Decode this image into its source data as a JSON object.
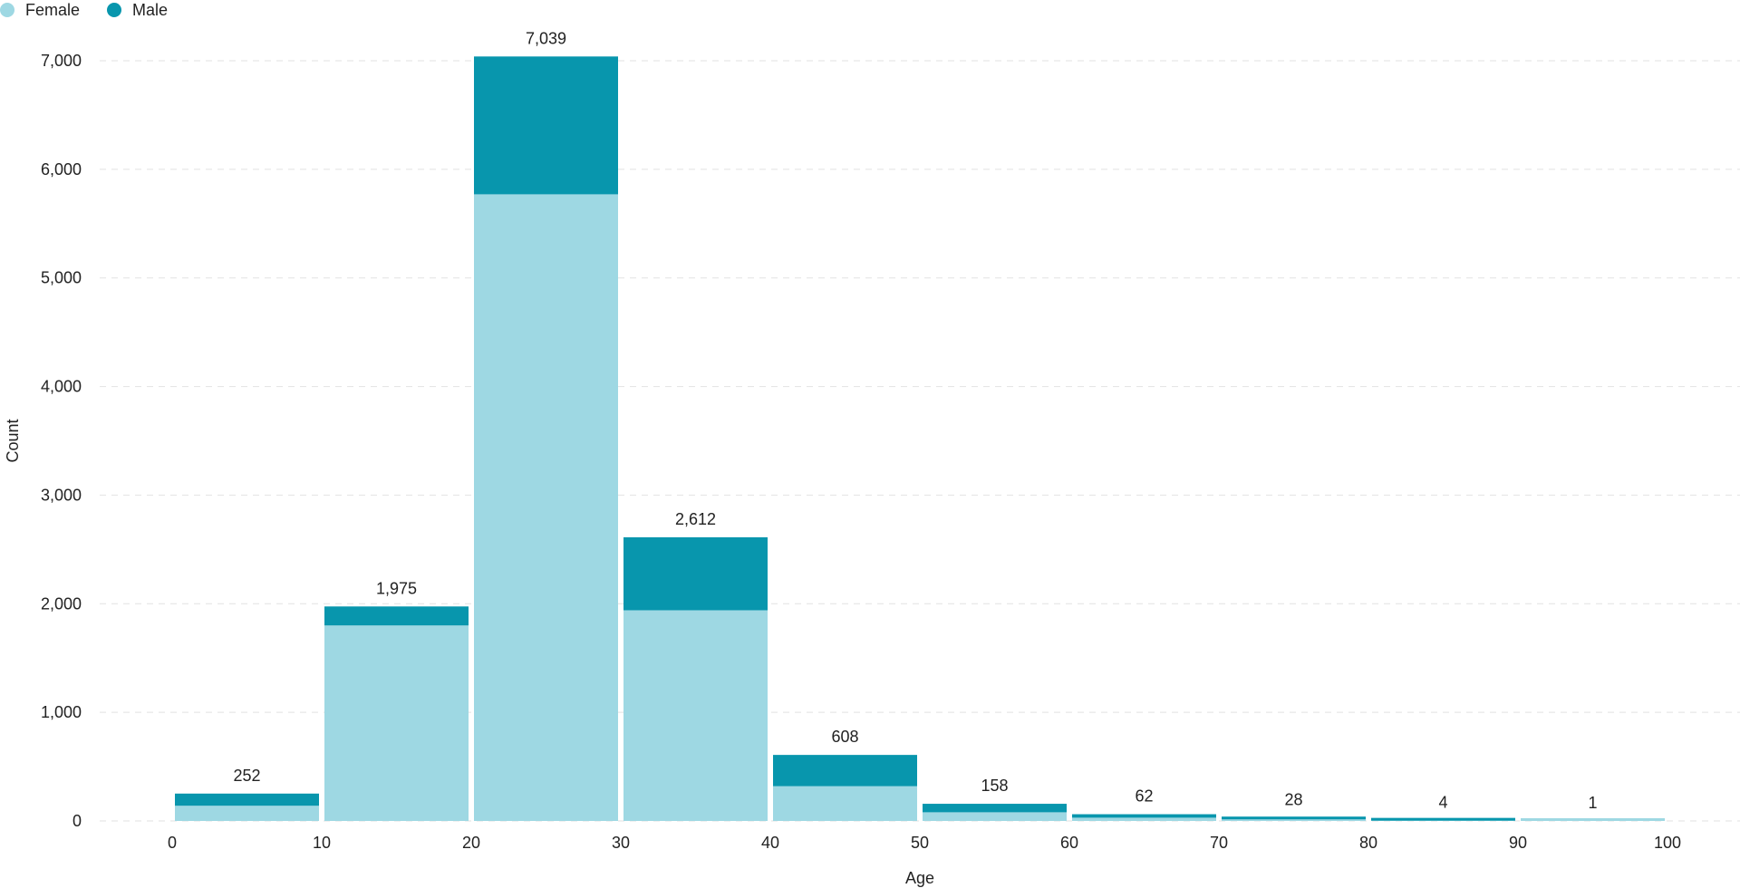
{
  "legend": {
    "female_label": "Female",
    "male_label": "Male"
  },
  "chart_data": {
    "type": "bar",
    "stacked": true,
    "title": "",
    "xlabel": "Age",
    "ylabel": "Count",
    "bins": [
      {
        "from": 0,
        "to": 10
      },
      {
        "from": 10,
        "to": 20
      },
      {
        "from": 20,
        "to": 30
      },
      {
        "from": 30,
        "to": 40
      },
      {
        "from": 40,
        "to": 50
      },
      {
        "from": 50,
        "to": 60
      },
      {
        "from": 60,
        "to": 70
      },
      {
        "from": 70,
        "to": 80
      },
      {
        "from": 80,
        "to": 90
      },
      {
        "from": 90,
        "to": 100
      }
    ],
    "series": [
      {
        "name": "Female",
        "color": "#9ed8e3",
        "values": [
          140,
          1800,
          5770,
          1940,
          320,
          80,
          30,
          15,
          3,
          1
        ]
      },
      {
        "name": "Male",
        "color": "#0896ad",
        "values": [
          112,
          175,
          1269,
          672,
          288,
          78,
          32,
          13,
          1,
          0
        ]
      }
    ],
    "totals": [
      252,
      1975,
      7039,
      2612,
      608,
      158,
      62,
      28,
      4,
      1
    ],
    "total_labels": [
      "252",
      "1,975",
      "7,039",
      "2,612",
      "608",
      "158",
      "62",
      "28",
      "4",
      "1"
    ],
    "x_ticks": [
      0,
      10,
      20,
      30,
      40,
      50,
      60,
      70,
      80,
      90,
      100
    ],
    "x_tick_labels": [
      "0",
      "10",
      "20",
      "30",
      "40",
      "50",
      "60",
      "70",
      "80",
      "90",
      "100"
    ],
    "y_ticks": [
      0,
      1000,
      2000,
      3000,
      4000,
      5000,
      6000,
      7000
    ],
    "y_tick_labels": [
      "0",
      "1,000",
      "2,000",
      "3,000",
      "4,000",
      "5,000",
      "6,000",
      "7,000"
    ],
    "xlim": [
      0,
      100
    ],
    "ylim": [
      0,
      7000
    ],
    "grid": true,
    "legend_position": "top-left"
  }
}
